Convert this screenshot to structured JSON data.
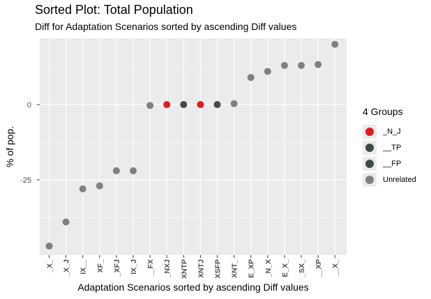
{
  "chart_data": {
    "type": "scatter",
    "title": "Sorted Plot: Total Population",
    "subtitle": "Diff for Adaptation Scenarios sorted by ascending Diff values",
    "xlabel": "Adaptation Scenarios sorted by ascending Diff values",
    "ylabel": "% of pop.",
    "categories": [
      "_X_",
      "_X_J",
      "IX__",
      "XF_",
      "_XFJ",
      "IX_J",
      "__FX",
      "_NXJ",
      "XNTP",
      "XNTJ",
      "XSFP",
      "XNT_",
      "E_XP",
      "_N_X",
      "E_X_",
      "_SX_",
      "__XP",
      "__X_"
    ],
    "values": [
      -47,
      -39,
      -28,
      -27,
      -22,
      -22,
      -0.3,
      0,
      0,
      0,
      0,
      0.3,
      9,
      11,
      13,
      13,
      13.3,
      20
    ],
    "groups": [
      "Unrelated",
      "Unrelated",
      "Unrelated",
      "Unrelated",
      "Unrelated",
      "Unrelated",
      "Unrelated",
      "_N_J",
      "__TP",
      "_N_J",
      "__FP",
      "Unrelated",
      "Unrelated",
      "Unrelated",
      "Unrelated",
      "Unrelated",
      "Unrelated",
      "Unrelated"
    ],
    "y_ticks": [
      0,
      -25
    ],
    "ylim": [
      -50,
      22
    ],
    "grid": true,
    "legend": {
      "title": "4 Groups",
      "position": "right",
      "items": [
        {
          "label": "_N_J",
          "color": "#e41a1c"
        },
        {
          "label": "__TP",
          "color": "#3e4a4a"
        },
        {
          "label": "__FP",
          "color": "#3e4a4a"
        },
        {
          "label": "Unrelated",
          "color": "#808080"
        }
      ]
    }
  },
  "colors": {
    "panel_background": "#ebebeb",
    "grid_major": "#ffffff",
    "point_unrelated": "#808080",
    "point_nj": "#e41a1c",
    "point_tp": "#3e4a4a",
    "point_fp": "#3e4a4a"
  }
}
